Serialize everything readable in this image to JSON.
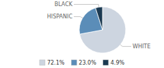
{
  "chart_data": {
    "type": "pie",
    "categories": [
      "WHITE",
      "HISPANIC",
      "BLACK"
    ],
    "values": [
      72.1,
      23.0,
      4.9
    ],
    "value_labels": [
      "72.1%",
      "23.0%",
      "4.9%"
    ],
    "colors": [
      "#cdd5e0",
      "#5b8db8",
      "#1c3a52"
    ],
    "legend": "bottom"
  }
}
